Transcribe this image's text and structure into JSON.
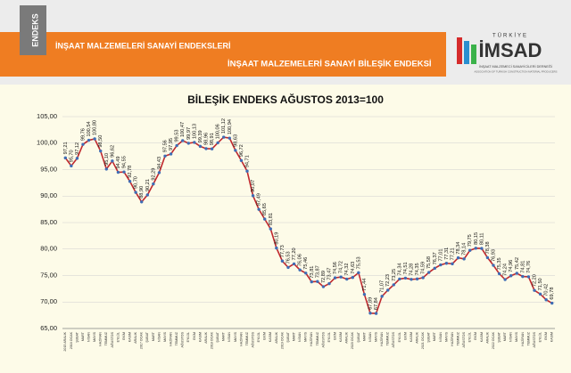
{
  "header": {
    "logo": "ENDEKS",
    "subtitle": "İNŞAAT MALZEMELERİ SANAYİ ENDEKSLERİ",
    "banner": "İNŞAAT MALZEMELERİ SANAYİ BİLEŞİK ENDEKSİ",
    "brand_top": "TÜRKİYE",
    "brand": "İMSAD",
    "brand_line1": "İNŞAAT MALZEMECİ SANAYİCİLERİ DERNEĞİ",
    "brand_line2": "ASSOCIATION OF TURKISH CONSTRUCTION MATERIAL PRODUCERS"
  },
  "chart_data": {
    "type": "line",
    "title": "BİLEŞİK ENDEKS AĞUSTOS 2013=100",
    "categories": [
      "2015 ARALIK",
      "2016 OCAK",
      "ŞUBAT",
      "MART",
      "NİSAN",
      "MAYIS",
      "HAZİRAN",
      "TEMMUZ",
      "AĞUSTOS",
      "EYLÜL",
      "EKİM",
      "KASIM",
      "ARALIK",
      "2017 OCAK",
      "ŞUBAT",
      "MART",
      "NİSAN",
      "MAYIS",
      "HAZİRAN",
      "TEMMUZ",
      "AĞUSTOS",
      "EYLÜL",
      "EKİM",
      "KASIM",
      "ARALIK",
      "2018 OCAK",
      "ŞUBAT",
      "MART",
      "NİSAN",
      "MAYIS",
      "HAZİRAN",
      "TEMMUZ",
      "AĞUSTOS",
      "EYLÜL",
      "EKİM",
      "KASIM",
      "ARALIK",
      "2019 OCAK",
      "ŞUBAT",
      "MART",
      "NİSAN",
      "MAYIS",
      "HAZİRAN",
      "TEMMUZ",
      "AĞUSTOS",
      "EYLÜL",
      "EKİM",
      "KASIM",
      "ARALIK",
      "2020 OCAK",
      "ŞUBAT",
      "MART",
      "NİSAN",
      "MAYIS",
      "HAZİRAN",
      "TEMMUZ",
      "AĞUSTOS",
      "EYLÜL",
      "EKİM",
      "KASIM",
      "ARALIK",
      "2021 OCAK",
      "ŞUBAT",
      "MART",
      "NİSAN",
      "MAYIS",
      "HAZİRAN",
      "TEMMUZ",
      "AĞUSTOS",
      "EYLÜL",
      "EKİM",
      "KASIM",
      "ARALIK",
      "2022 OCAK",
      "ŞUBAT",
      "MART",
      "NİSAN",
      "MAYIS",
      "HAZİRAN",
      "TEMMUZ",
      "AĞUSTOS",
      "EYLÜL",
      "EKİM",
      "KASIM"
    ],
    "values": [
      97.21,
      95.7,
      97.12,
      99.76,
      100.54,
      100.8,
      98.5,
      95.1,
      96.62,
      94.49,
      94.55,
      92.78,
      90.7,
      88.9,
      90.21,
      92.29,
      94.43,
      97.56,
      97.95,
      99.53,
      100.47,
      99.97,
      100.13,
      99.39,
      98.96,
      98.91,
      100.06,
      101.12,
      100.94,
      98.63,
      96.72,
      94.71,
      90.07,
      87.49,
      85.65,
      83.81,
      80.19,
      77.73,
      76.53,
      77.2,
      76.06,
      75.46,
      73.81,
      73.87,
      72.89,
      73.47,
      74.56,
      74.72,
      74.32,
      74.63,
      75.53,
      71.44,
      67.89,
      67.84,
      71.07,
      72.23,
      73.25,
      74.34,
      74.51,
      74.28,
      74.35,
      74.59,
      75.58,
      76.37,
      77.01,
      77.31,
      77.21,
      78.34,
      78.14,
      79.75,
      80.15,
      80.11,
      78.38,
      76.93,
      75.35,
      74.24,
      74.96,
      75.42,
      74.81,
      74.76,
      72.2,
      71.5,
      70.42,
      69.78
    ],
    "value_labels": [
      "97,21",
      "95,70",
      "97,12",
      "99,76",
      "100,54",
      "100,80",
      "98,50",
      "95,10",
      "96,62",
      "94,49",
      "94,55",
      "92,78",
      "90,70",
      "88,90",
      "90,21",
      "92,29",
      "94,43",
      "97,56",
      "97,95",
      "99,53",
      "100,47",
      "99,97",
      "100,13",
      "99,39",
      "98,96",
      "98,91",
      "100,06",
      "101,12",
      "100,94",
      "98,63",
      "96,72",
      "94,71",
      "90,07",
      "87,49",
      "85,65",
      "83,81",
      "80,19",
      "77,73",
      "76,53",
      "77,20",
      "76,06",
      "75,46",
      "73,81",
      "73,87",
      "72,89",
      "73,47",
      "74,56",
      "74,72",
      "74,32",
      "74,63",
      "75,53",
      "71,44",
      "67,89",
      "67,84",
      "71,07",
      "72,23",
      "73,25",
      "74,34",
      "74,51",
      "74,28",
      "74,35",
      "74,59",
      "75,58",
      "76,37",
      "77,01",
      "77,31",
      "77,21",
      "78,34",
      "78,14",
      "79,75",
      "80,15",
      "80,11",
      "78,38",
      "76,93",
      "75,35",
      "74,24",
      "74,96",
      "75,42",
      "74,81",
      "74,76",
      "72,20",
      "71,50",
      "70,42",
      "69,78"
    ],
    "color": "#c0282d",
    "marker_color": "#3f6db5",
    "grid": true,
    "ylim": [
      65,
      105
    ],
    "yticks": [
      {
        "value": 65,
        "label": "65,00"
      },
      {
        "value": 70,
        "label": "70,00"
      },
      {
        "value": 75,
        "label": "75,00"
      },
      {
        "value": 80,
        "label": "80,00"
      },
      {
        "value": 85,
        "label": "85,00"
      },
      {
        "value": 90,
        "label": "90,00"
      },
      {
        "value": 95,
        "label": "95,00"
      },
      {
        "value": 100,
        "label": "100,00"
      },
      {
        "value": 105,
        "label": "105,00"
      }
    ]
  }
}
